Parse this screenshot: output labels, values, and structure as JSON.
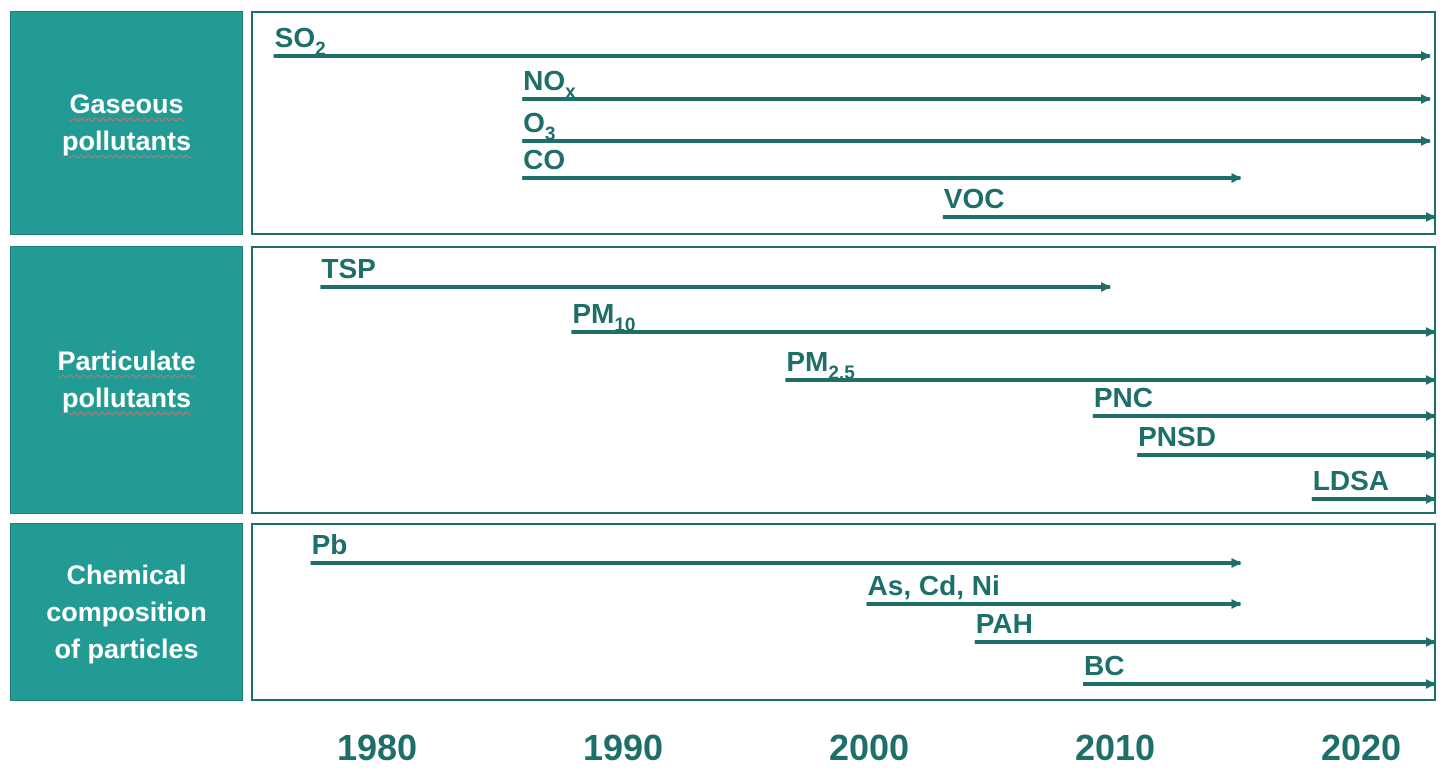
{
  "categories": [
    {
      "key": "gaseous",
      "label": "Gaseous\npollutants"
    },
    {
      "key": "particulate",
      "label": "Particulate\npollutants"
    },
    {
      "key": "chemical",
      "label": "Chemical\ncomposition\nof particles"
    }
  ],
  "timeline": {
    "years": [
      "1980",
      "1990",
      "2000",
      "2010",
      "2020"
    ],
    "items": [
      {
        "group": "gaseous",
        "main": "SO",
        "sub": "2",
        "start": 1975.8,
        "end": 2022.8
      },
      {
        "group": "gaseous",
        "main": "NO",
        "sub": "x",
        "start": 1985.9,
        "end": 2022.8
      },
      {
        "group": "gaseous",
        "main": "O",
        "sub": "3",
        "start": 1985.9,
        "end": 2022.8
      },
      {
        "group": "gaseous",
        "main": "CO",
        "sub": "",
        "start": 1985.9,
        "end": 2015.1
      },
      {
        "group": "gaseous",
        "main": "VOC",
        "sub": "",
        "start": 2003.0,
        "end": 2023.0
      },
      {
        "group": "particulate",
        "main": "TSP",
        "sub": "",
        "start": 1977.7,
        "end": 2009.8
      },
      {
        "group": "particulate",
        "main": "PM",
        "sub": "10",
        "start": 1987.9,
        "end": 2023.0
      },
      {
        "group": "particulate",
        "main": "PM",
        "sub": "2,5",
        "start": 1996.6,
        "end": 2023.0
      },
      {
        "group": "particulate",
        "main": "PNC",
        "sub": "",
        "start": 2009.1,
        "end": 2023.0
      },
      {
        "group": "particulate",
        "main": "PNSD",
        "sub": "",
        "start": 2010.9,
        "end": 2023.0
      },
      {
        "group": "particulate",
        "main": "LDSA",
        "sub": "",
        "start": 2018.0,
        "end": 2023.0
      },
      {
        "group": "chemical",
        "main": "Pb",
        "sub": "",
        "start": 1977.3,
        "end": 2015.1
      },
      {
        "group": "chemical",
        "main": "As, Cd, Ni",
        "sub": "",
        "start": 1999.9,
        "end": 2015.1
      },
      {
        "group": "chemical",
        "main": "PAH",
        "sub": "",
        "start": 2004.3,
        "end": 2023.0
      },
      {
        "group": "chemical",
        "main": "BC",
        "sub": "",
        "start": 2008.7,
        "end": 2023.0
      }
    ]
  },
  "colors": {
    "category_fill": "#239b95",
    "ink": "#1e6f6a"
  }
}
